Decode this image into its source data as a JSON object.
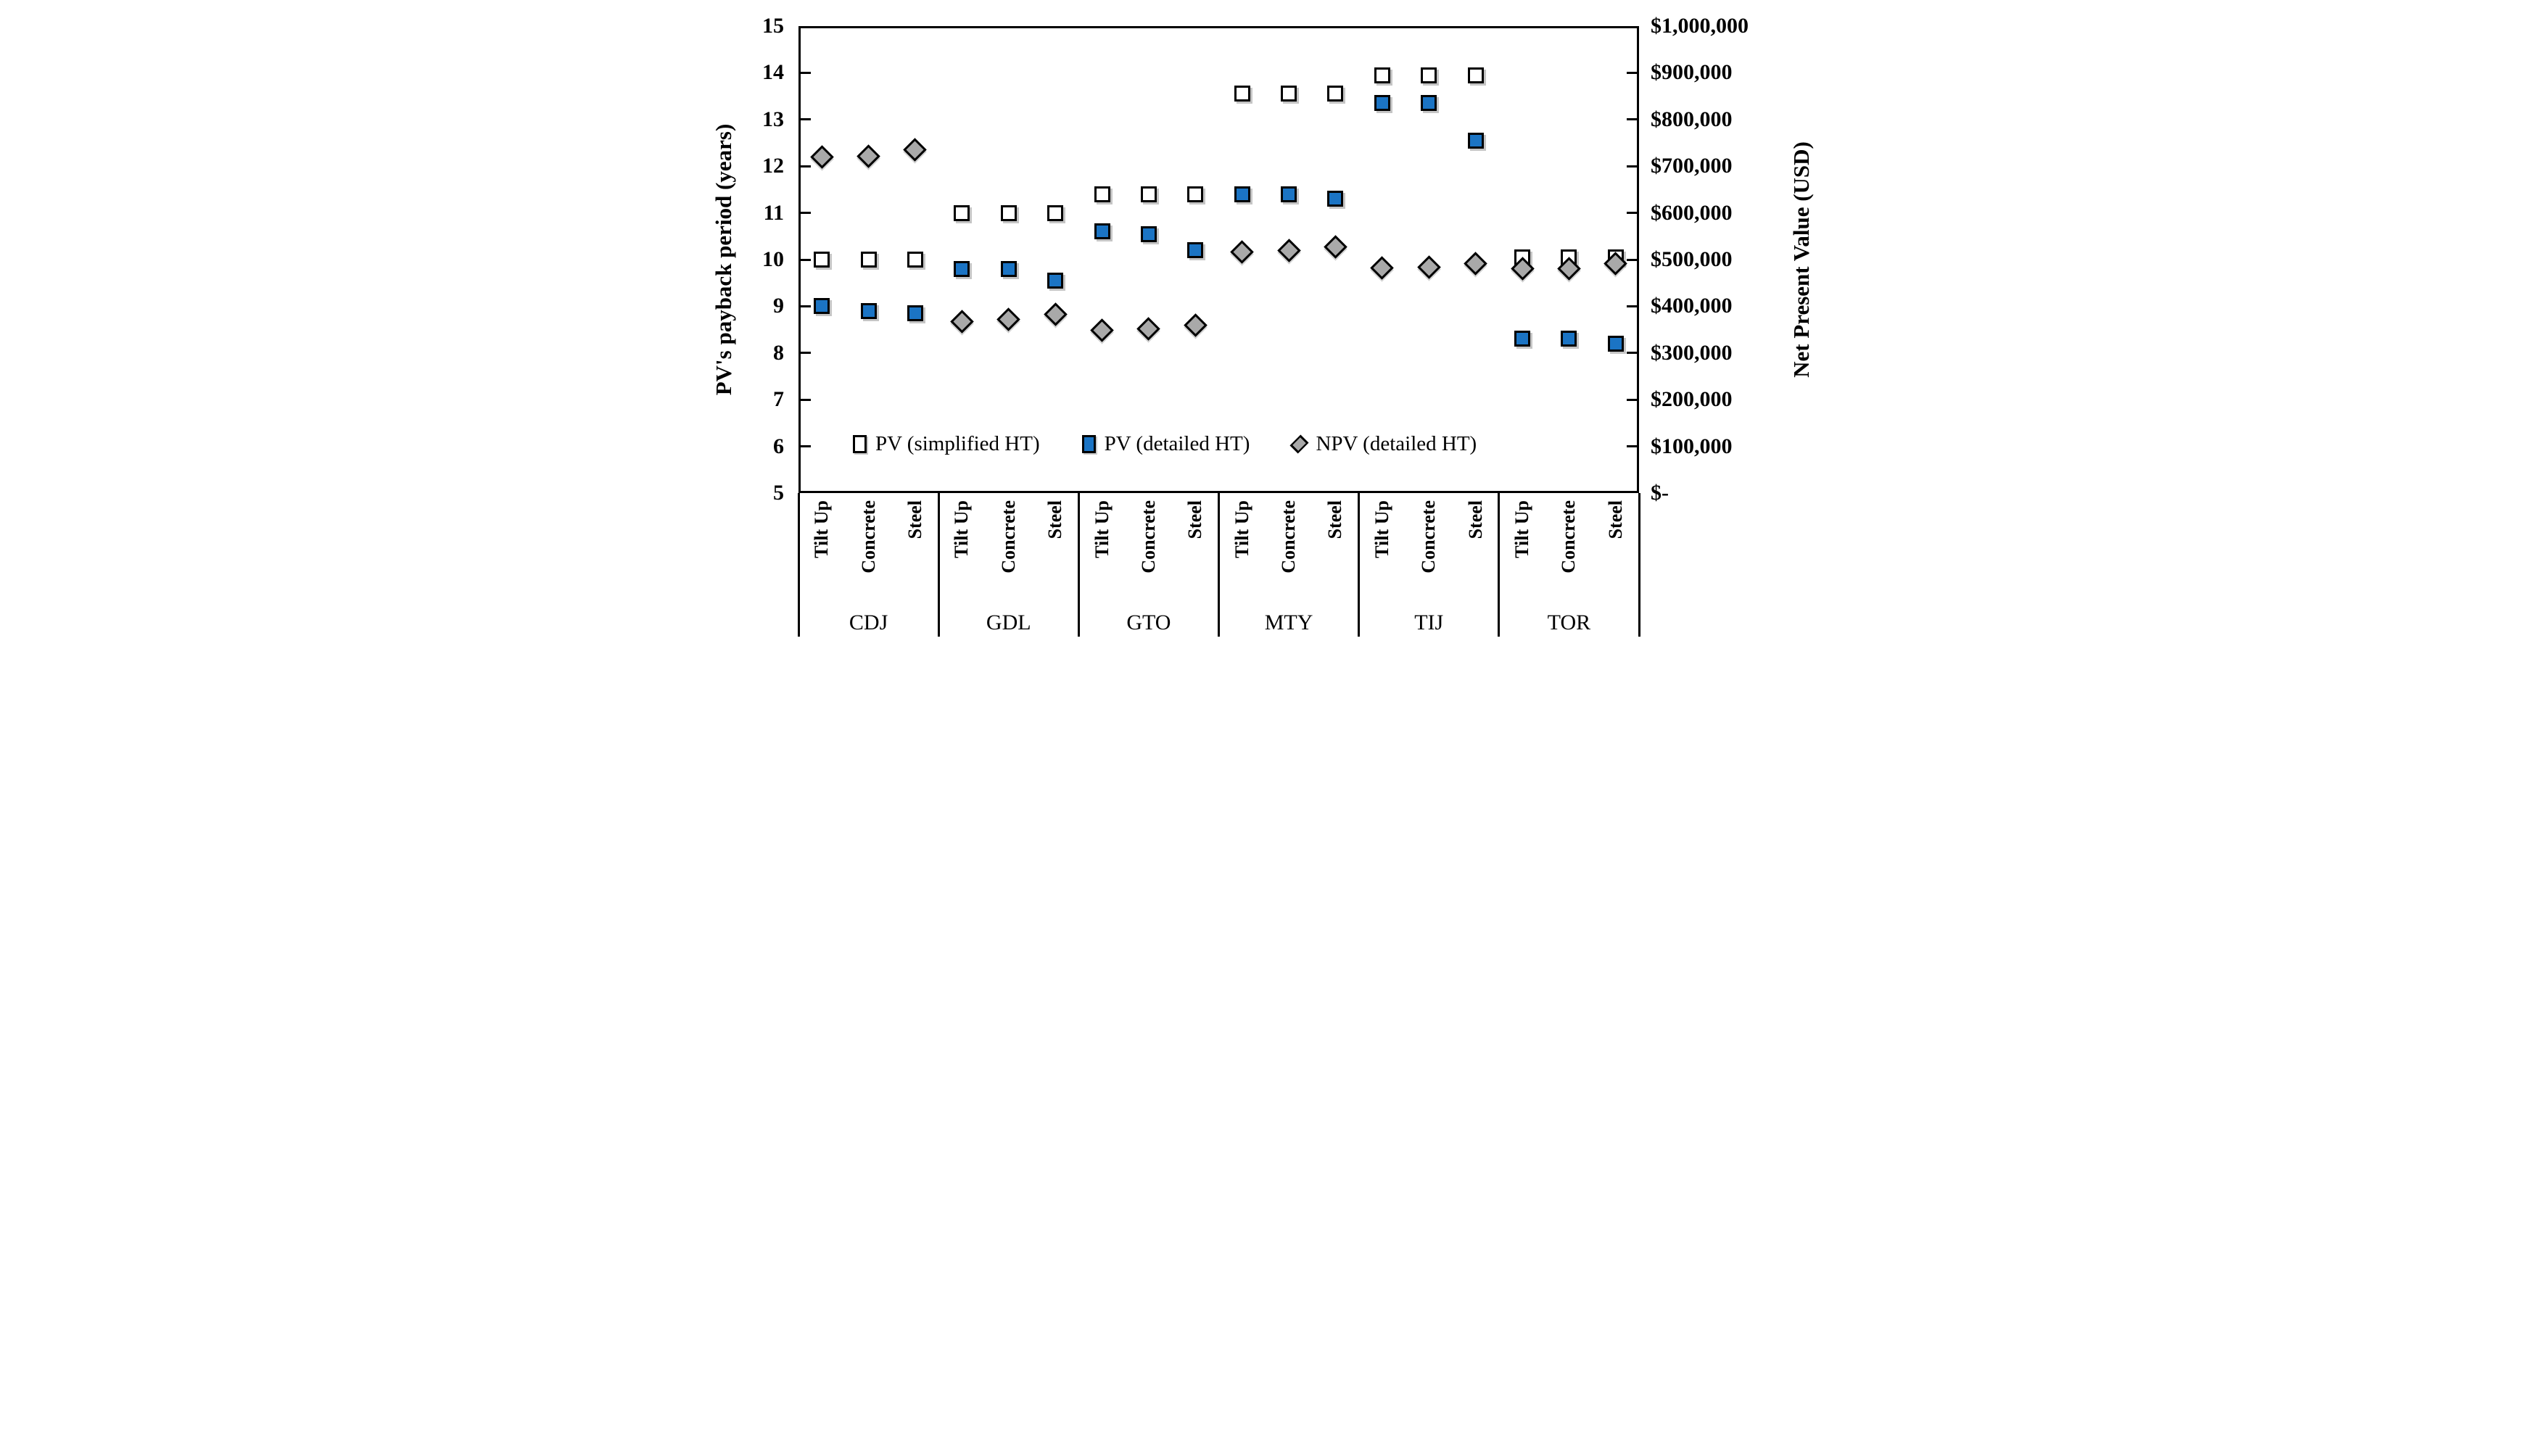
{
  "chart_data": {
    "type": "scatter",
    "title": "",
    "left_axis": {
      "label": "PV's payback  period  (years)",
      "min": 5,
      "max": 15,
      "ticks": [
        15,
        14,
        13,
        12,
        11,
        10,
        9,
        8,
        7,
        6,
        5
      ]
    },
    "right_axis": {
      "label": "Net Present Value (USD)",
      "min": 0,
      "max": 1000000,
      "tick_labels": [
        "$1,000,000",
        "$900,000",
        "$800,000",
        "$700,000",
        "$600,000",
        "$500,000",
        "$400,000",
        "$300,000",
        "$200,000",
        "$100,000",
        "$-"
      ]
    },
    "groups": [
      "CDJ",
      "GDL",
      "GTO",
      "MTY",
      "TIJ",
      "TOR"
    ],
    "subcategories": [
      "Tilt Up",
      "Concrete",
      "Steel"
    ],
    "series": [
      {
        "name": "PV (simplified HT)",
        "axis": "left",
        "marker": "square",
        "fill": "#FFFFFF",
        "values": [
          [
            10.0,
            10.0,
            10.0
          ],
          [
            11.0,
            11.0,
            11.0
          ],
          [
            11.4,
            11.4,
            11.4
          ],
          [
            13.55,
            13.55,
            13.55
          ],
          [
            13.95,
            13.95,
            13.95
          ],
          [
            10.05,
            10.05,
            10.05
          ]
        ]
      },
      {
        "name": "PV (detailed HT)",
        "axis": "left",
        "marker": "square",
        "fill": "#1B74C4",
        "values": [
          [
            9.0,
            8.9,
            8.85
          ],
          [
            9.8,
            9.8,
            9.55
          ],
          [
            10.6,
            10.55,
            10.2
          ],
          [
            11.4,
            11.4,
            11.3
          ],
          [
            13.35,
            13.35,
            12.55
          ],
          [
            8.3,
            8.3,
            8.2
          ]
        ]
      },
      {
        "name": "NPV (detailed HT)",
        "axis": "right",
        "marker": "diamond",
        "fill": "#A9A9A9",
        "values": [
          [
            720000,
            722000,
            735000
          ],
          [
            368000,
            372000,
            382000
          ],
          [
            348000,
            352000,
            360000
          ],
          [
            516000,
            520000,
            527000
          ],
          [
            482000,
            483000,
            492000
          ],
          [
            480000,
            481000,
            492000
          ]
        ]
      }
    ],
    "legend_position": "inside-bottom",
    "grid": false,
    "colors": {
      "series_blue": "#1B74C4",
      "series_gray": "#A9A9A9",
      "marker_border": "#000000",
      "axis": "#000000"
    }
  }
}
